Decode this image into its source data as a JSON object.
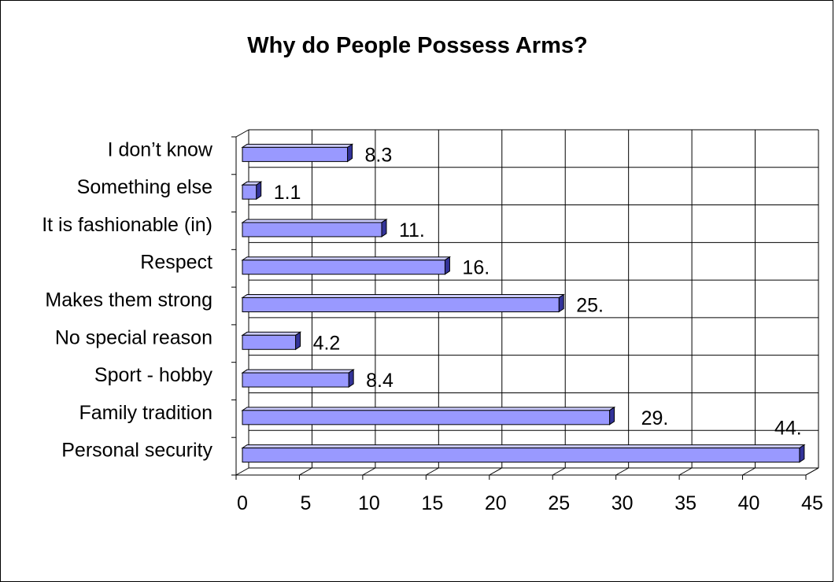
{
  "chart_data": {
    "type": "bar",
    "orientation": "horizontal",
    "style": "3d",
    "title": "Why do People Possess Arms?",
    "categories": [
      "I don’t know",
      "Something else",
      "It is fashionable (in)",
      "Respect",
      "Makes them strong",
      "No special reason",
      "Sport - hobby",
      "Family tradition",
      "Personal security"
    ],
    "values": [
      8.3,
      1.1,
      11,
      16,
      25,
      4.2,
      8.4,
      29,
      44
    ],
    "data_labels": [
      "8.3",
      "1.1",
      "11.",
      "16.",
      "25.",
      "4.2",
      "8.4",
      "29.",
      "44."
    ],
    "xlim": [
      0,
      45
    ],
    "x_ticks": [
      0,
      5,
      10,
      15,
      20,
      25,
      30,
      35,
      40,
      45
    ],
    "grid": true,
    "legend": "none",
    "colors": {
      "bar_front": "#9999FF",
      "bar_top": "#CCCCFF",
      "bar_side": "#333399",
      "grid": "#000000"
    }
  }
}
